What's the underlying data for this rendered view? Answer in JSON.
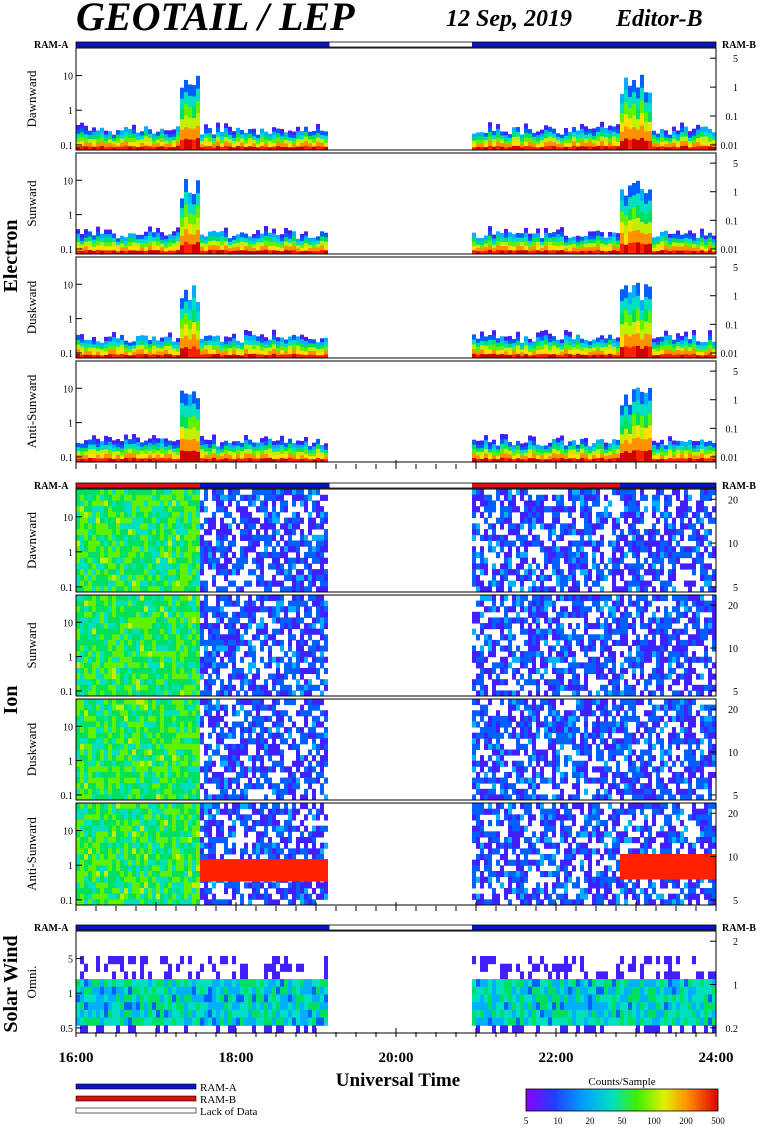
{
  "header": {
    "title": "GEOTAIL / LEP",
    "date": "12 Sep, 2019",
    "editor": "Editor-B"
  },
  "colors": {
    "ram_a": "#0a14c8",
    "ram_b": "#e01010",
    "spectrogram_scale": [
      "#ffffff",
      "#8a00ff",
      "#4020ff",
      "#0060ff",
      "#00b0ff",
      "#00e0c0",
      "#00e060",
      "#60f000",
      "#c0f000",
      "#ffe000",
      "#ff9000",
      "#ff2000",
      "#d00000"
    ]
  },
  "chart_data": {
    "type": "heatmap",
    "x": {
      "label": "Universal Time",
      "range_hours": [
        16,
        24
      ],
      "ticks": [
        "16:00",
        "18:00",
        "20:00",
        "22:00",
        "24:00"
      ]
    },
    "data_gap_hours": [
      19.17,
      20.95
    ],
    "ram_labels": {
      "left": "RAM-A",
      "right": "RAM-B"
    },
    "sections": [
      {
        "name": "Electron",
        "mode_bar": [
          {
            "from": 16.0,
            "to": 19.17,
            "mode": "RAM-A"
          },
          {
            "from": 19.17,
            "to": 20.95,
            "mode": "Lack of Data"
          },
          {
            "from": 20.95,
            "to": 24.0,
            "mode": "RAM-A"
          }
        ],
        "panels": [
          {
            "label": "Dawnward",
            "left_ticks": [
              "10",
              "1",
              "0.1"
            ],
            "right_ticks": [
              "5",
              "1",
              "0.1",
              "0.01"
            ]
          },
          {
            "label": "Sunward",
            "left_ticks": [
              "10",
              "1",
              "0.1"
            ],
            "right_ticks": [
              "5",
              "1",
              "0.1",
              "0.01"
            ]
          },
          {
            "label": "Duskward",
            "left_ticks": [
              "10",
              "1",
              "0.1"
            ],
            "right_ticks": [
              "5",
              "1",
              "0.1",
              "0.01"
            ]
          },
          {
            "label": "Anti-Sunward",
            "left_ticks": [
              "10",
              "1",
              "0.1"
            ],
            "right_ticks": [
              "5",
              "1",
              "0.1",
              "0.01"
            ]
          }
        ]
      },
      {
        "name": "Ion",
        "mode_bar": [
          {
            "from": 16.0,
            "to": 17.55,
            "mode": "RAM-B"
          },
          {
            "from": 17.55,
            "to": 19.17,
            "mode": "RAM-A"
          },
          {
            "from": 19.17,
            "to": 20.95,
            "mode": "Lack of Data"
          },
          {
            "from": 20.95,
            "to": 22.8,
            "mode": "RAM-B"
          },
          {
            "from": 22.8,
            "to": 24.0,
            "mode": "RAM-A"
          }
        ],
        "panels": [
          {
            "label": "Dawnward",
            "left_ticks": [
              "10",
              "1",
              "0.1"
            ],
            "right_ticks": [
              "20",
              "10",
              "5"
            ]
          },
          {
            "label": "Sunward",
            "left_ticks": [
              "10",
              "1",
              "0.1"
            ],
            "right_ticks": [
              "20",
              "10",
              "5"
            ]
          },
          {
            "label": "Duskward",
            "left_ticks": [
              "10",
              "1",
              "0.1"
            ],
            "right_ticks": [
              "20",
              "10",
              "5"
            ]
          },
          {
            "label": "Anti-Sunward",
            "left_ticks": [
              "10",
              "1",
              "0.1"
            ],
            "right_ticks": [
              "20",
              "10",
              "5"
            ]
          }
        ]
      },
      {
        "name": "Solar Wind",
        "mode_bar": [
          {
            "from": 16.0,
            "to": 19.17,
            "mode": "RAM-A"
          },
          {
            "from": 19.17,
            "to": 20.95,
            "mode": "Lack of Data"
          },
          {
            "from": 20.95,
            "to": 24.0,
            "mode": "RAM-A"
          }
        ],
        "panels": [
          {
            "label": "Omni.",
            "left_ticks": [
              "5",
              "1",
              "0.5"
            ],
            "right_ticks": [
              "2",
              "1",
              "0.2"
            ]
          }
        ]
      }
    ],
    "legend": [
      {
        "label": "RAM-A"
      },
      {
        "label": "RAM-B"
      },
      {
        "label": "Lack of Data"
      }
    ],
    "colorbar": {
      "title": "Counts/Sample",
      "ticks": [
        "5",
        "10",
        "20",
        "50",
        "100",
        "200",
        "500"
      ]
    }
  }
}
